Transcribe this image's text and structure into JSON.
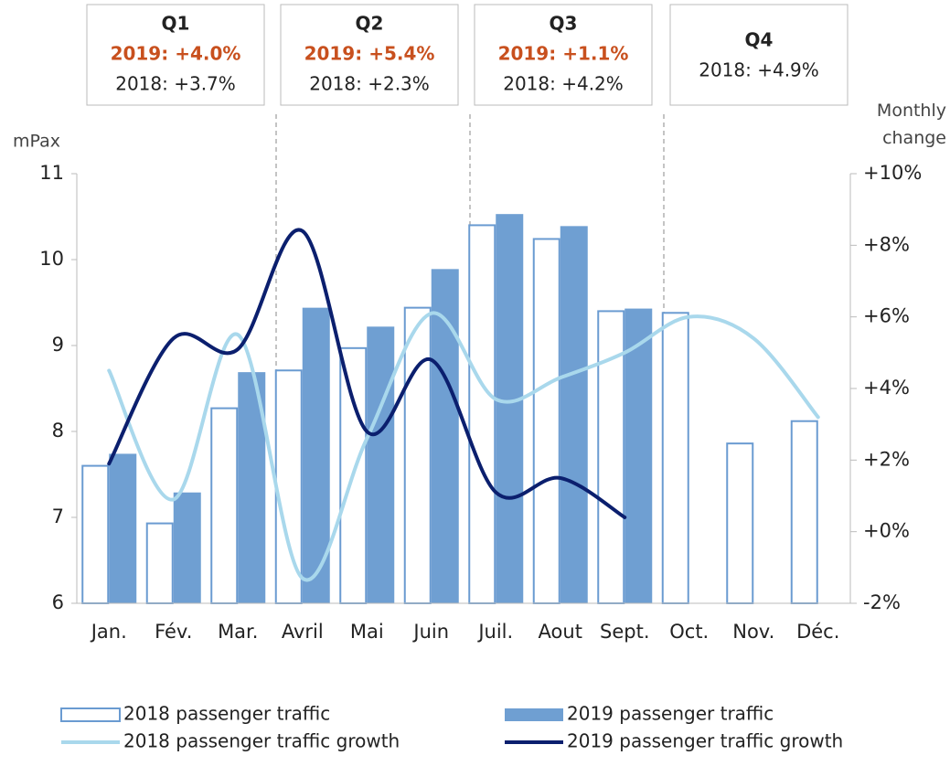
{
  "chart_data": {
    "type": "bar",
    "y_label": "mPax",
    "y2_label": "Monthly change",
    "categories": [
      "Jan.",
      "Fév.",
      "Mar.",
      "Avril",
      "Mai",
      "Juin",
      "Juil.",
      "Aout",
      "Sept.",
      "Oct.",
      "Nov.",
      "Déc."
    ],
    "ylim": [
      6,
      11
    ],
    "yticks": [
      6,
      7,
      8,
      9,
      10,
      11
    ],
    "y2lim": [
      -2,
      10
    ],
    "y2ticks": [
      {
        "value": -2,
        "label": "-2%"
      },
      {
        "value": 0,
        "label": "+0%"
      },
      {
        "value": 2,
        "label": "+2%"
      },
      {
        "value": 4,
        "label": "+4%"
      },
      {
        "value": 6,
        "label": "+6%"
      },
      {
        "value": 8,
        "label": "+8%"
      },
      {
        "value": 10,
        "label": "+10%"
      }
    ],
    "series": [
      {
        "name": "2018 passenger traffic",
        "type": "bar",
        "style": "outline",
        "color": "#6a9bd1",
        "values": [
          7.6,
          6.93,
          8.27,
          8.71,
          8.97,
          9.44,
          10.4,
          10.24,
          9.4,
          9.38,
          7.86,
          8.12
        ]
      },
      {
        "name": "2019 passenger traffic",
        "type": "bar",
        "style": "filled",
        "color": "#6f9fd2",
        "values": [
          7.74,
          7.29,
          8.69,
          9.44,
          9.22,
          9.89,
          10.53,
          10.39,
          9.43,
          null,
          null,
          null
        ]
      },
      {
        "name": "2018 passenger traffic growth",
        "type": "line",
        "axis": "y2",
        "color": "#a9d8ec",
        "values": [
          4.5,
          0.9,
          5.5,
          -1.3,
          2.6,
          6.1,
          3.7,
          4.3,
          5.0,
          6.0,
          5.4,
          3.2
        ]
      },
      {
        "name": "2019 passenger traffic growth",
        "type": "line",
        "axis": "y2",
        "color": "#0b1f6e",
        "values": [
          1.9,
          5.4,
          5.1,
          8.4,
          2.8,
          4.8,
          1.1,
          1.5,
          0.4,
          null,
          null,
          null
        ]
      }
    ],
    "quarters": [
      {
        "label": "Q1",
        "y2019": "2019: +4.0%",
        "y2018": "2018: +3.7%"
      },
      {
        "label": "Q2",
        "y2019": "2019: +5.4%",
        "y2018": "2018: +2.3%"
      },
      {
        "label": "Q3",
        "y2019": "2019: +1.1%",
        "y2018": "2018: +4.2%"
      },
      {
        "label": "Q4",
        "y2018": "2018: +4.9%"
      }
    ]
  }
}
